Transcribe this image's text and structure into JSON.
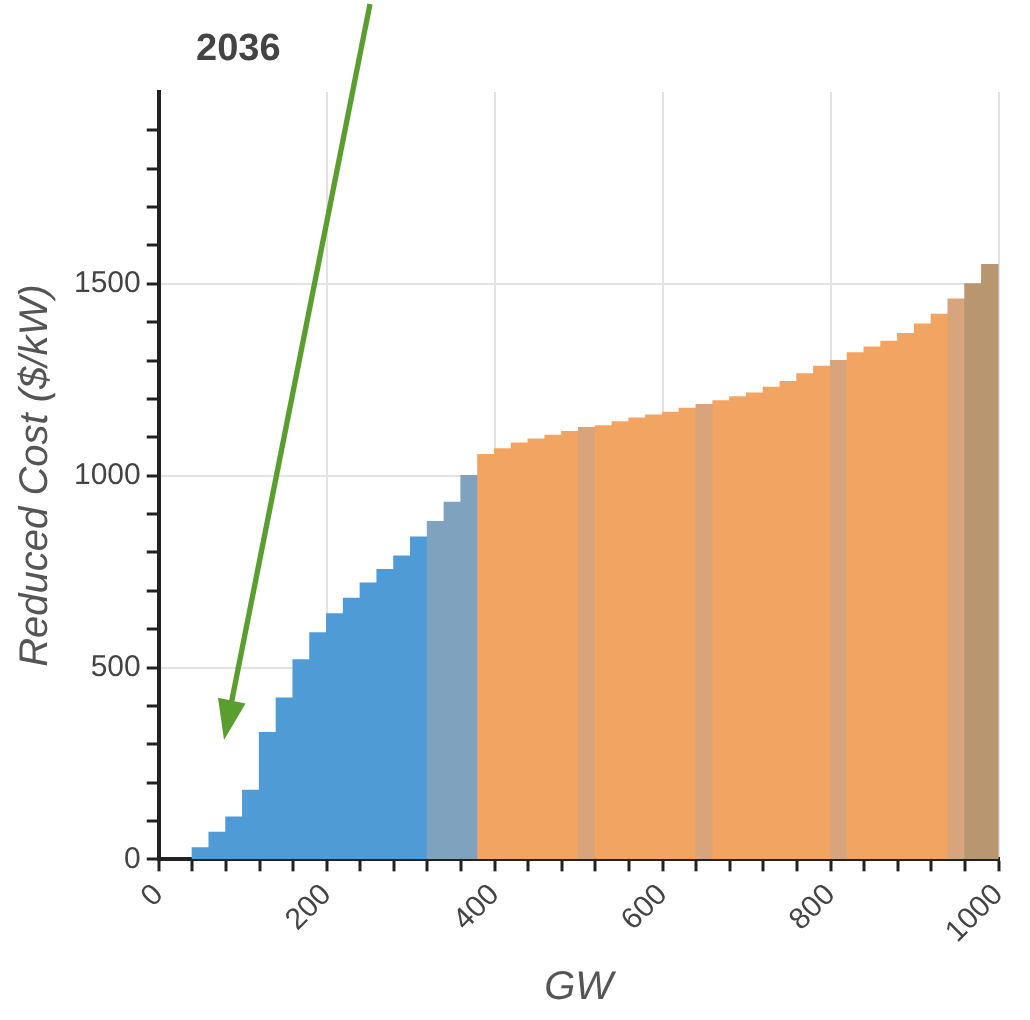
{
  "chart_data": {
    "type": "histogram",
    "title": "2036",
    "xlabel": "GW",
    "ylabel": "Reduced Cost ($/kW)",
    "bins": [
      40,
      60,
      80,
      100,
      120,
      140,
      160,
      180,
      200,
      220,
      240,
      260,
      280,
      300,
      320,
      340,
      360,
      380,
      400,
      420,
      440,
      460,
      480,
      500,
      520,
      540,
      560,
      580,
      600,
      620,
      640,
      660,
      680,
      700,
      720,
      740,
      760,
      780,
      800,
      820,
      840,
      860,
      880,
      900,
      920,
      940,
      960,
      980,
      1000
    ],
    "values": [
      30,
      70,
      110,
      180,
      330,
      420,
      520,
      590,
      640,
      680,
      720,
      755,
      790,
      840,
      880,
      930,
      1000,
      1055,
      1070,
      1085,
      1095,
      1105,
      1115,
      1125,
      1130,
      1140,
      1150,
      1158,
      1165,
      1175,
      1185,
      1195,
      1205,
      1215,
      1230,
      1245,
      1265,
      1285,
      1300,
      1320,
      1335,
      1350,
      1370,
      1395,
      1420,
      1460,
      1500,
      1550
    ],
    "colors": [
      "#4f9bd6",
      "#4f9bd6",
      "#4f9bd6",
      "#4f9bd6",
      "#4f9bd6",
      "#4f9bd6",
      "#4f9bd6",
      "#4f9bd6",
      "#4f9bd6",
      "#4f9bd6",
      "#4f9bd6",
      "#4f9bd6",
      "#4f9bd6",
      "#4f9bd6",
      "#7fa3bf",
      "#7fa3bf",
      "#7fa3bf",
      "#f2a462",
      "#f2a462",
      "#f2a462",
      "#f2a462",
      "#f2a462",
      "#f2a462",
      "#d8a47c",
      "#f2a462",
      "#f2a462",
      "#f2a462",
      "#f2a462",
      "#f2a462",
      "#f2a462",
      "#d8a47c",
      "#f2a462",
      "#f2a462",
      "#f2a462",
      "#f2a462",
      "#f2a462",
      "#f2a462",
      "#f2a462",
      "#d8a47c",
      "#f2a462",
      "#f2a462",
      "#f2a462",
      "#f2a462",
      "#f2a462",
      "#f2a462",
      "#d8a47c",
      "#b8966f",
      "#b8966f"
    ],
    "xlim": [
      0,
      1000
    ],
    "xticks": [
      0,
      {
        "value": 40,
        "label": null
      },
      {
        "value": 80,
        "label": null
      },
      {
        "value": 120,
        "label": null
      },
      {
        "value": 160,
        "label": null
      },
      200,
      {
        "value": 240,
        "label": null
      },
      {
        "value": 280,
        "label": null
      },
      {
        "value": 320,
        "label": null
      },
      {
        "value": 360,
        "label": null
      },
      400,
      {
        "value": 440,
        "label": null
      },
      {
        "value": 480,
        "label": null
      },
      {
        "value": 520,
        "label": null
      },
      {
        "value": 560,
        "label": null
      },
      600,
      {
        "value": 640,
        "label": null
      },
      {
        "value": 680,
        "label": null
      },
      {
        "value": 720,
        "label": null
      },
      {
        "value": 760,
        "label": null
      },
      800,
      {
        "value": 840,
        "label": null
      },
      {
        "value": 880,
        "label": null
      },
      {
        "value": 920,
        "label": null
      },
      {
        "value": 960,
        "label": null
      },
      1000
    ],
    "ylim": [
      0,
      2000
    ],
    "yticks": [
      0,
      {
        "value": 100,
        "label": null
      },
      {
        "value": 200,
        "label": null
      },
      {
        "value": 300,
        "label": null
      },
      {
        "value": 400,
        "label": null
      },
      500,
      {
        "value": 600,
        "label": null
      },
      {
        "value": 700,
        "label": null
      },
      {
        "value": 800,
        "label": null
      },
      {
        "value": 900,
        "label": null
      },
      1000,
      {
        "value": 1100,
        "label": null
      },
      {
        "value": 1200,
        "label": null
      },
      {
        "value": 1300,
        "label": null
      },
      {
        "value": 1400,
        "label": null
      },
      1500,
      {
        "value": 1600,
        "label": null
      },
      {
        "value": 1700,
        "label": null
      },
      {
        "value": 1800,
        "label": null
      },
      {
        "value": 1900,
        "label": null
      }
    ],
    "grid": true
  }
}
